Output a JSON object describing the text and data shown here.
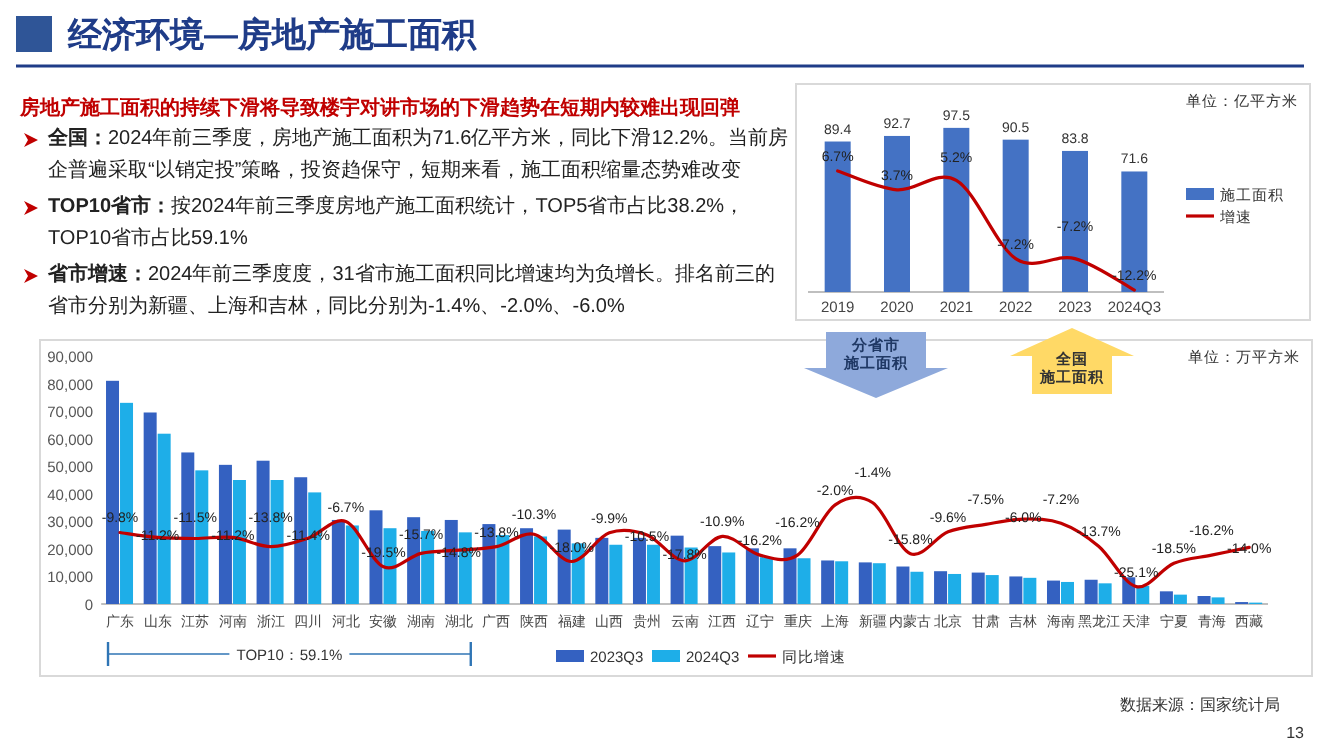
{
  "chart_data": [
    {
      "type": "other",
      "title": "经济环境—房地产施工面积",
      "subtitle": "房地产施工面积的持续下滑将导致楼宇对讲市场的下滑趋势在短期内较难出现回弹",
      "annotations": [
        "全国：2024年前三季度，房地产施工面积为71.6亿平方米，同比下滑12.2%。当前房企普遍采取“以销定投”策略，投资趋保守，短期来看，施工面积缩量态势难改变",
        "TOP10省市：按2024年前三季度房地产施工面积统计，TOP5省市占比38.2%，TOP10省市占比59.1%",
        "省市增速：2024年前三季度度，31省市施工面积同比增速均为负增长。排名前三的省市分别为新疆、上海和吉林，同比分别为-1.4%、-2.0%、-6.0%",
        "数据来源：国家统计局",
        "13"
      ]
    },
    {
      "type": "bar",
      "categories": [
        "2019",
        "2020",
        "2021",
        "2022",
        "2023",
        "2024Q3"
      ],
      "ylim": [
        0,
        120
      ],
      "tick_labels": "x",
      "legend": "right",
      "annotations": [
        "单位：亿平方米"
      ],
      "series": [
        {
          "name": "施工面积",
          "type": "bar",
          "color": "#4472c4",
          "values": [
            89.4,
            92.7,
            97.5,
            90.5,
            83.8,
            71.6
          ],
          "value_labels": [
            "89.4",
            "92.7",
            "97.5",
            "90.5",
            "83.8",
            "71.6"
          ]
        },
        {
          "name": "增速",
          "type": "line",
          "axis": "y2",
          "color": "#c00000",
          "values": [
            6.7,
            3.7,
            5.2,
            -7.2,
            -7.2,
            -12.2
          ],
          "value_labels": [
            "6.7%",
            "3.7%",
            "5.2%",
            "-7.2%",
            "-7.2%",
            "-12.2%"
          ]
        }
      ]
    },
    {
      "type": "bar",
      "categories": [
        "广东",
        "山东",
        "江苏",
        "河南",
        "浙江",
        "四川",
        "河北",
        "安徽",
        "湖南",
        "湖北",
        "广西",
        "陕西",
        "福建",
        "山西",
        "贵州",
        "云南",
        "江西",
        "辽宁",
        "重庆",
        "上海",
        "新疆",
        "内蒙古",
        "北京",
        "甘肃",
        "吉林",
        "海南",
        "黑龙江",
        "天津",
        "宁夏",
        "青海",
        "西藏"
      ],
      "ylim": [
        0,
        90000
      ],
      "yticks": [
        0,
        {
          "value": 10000,
          "label": "10,000"
        },
        {
          "value": 20000,
          "label": "20,000"
        },
        {
          "value": 30000,
          "label": "30,000"
        },
        {
          "value": 40000,
          "label": "40,000"
        },
        {
          "value": 50000,
          "label": "50,000"
        },
        {
          "value": 60000,
          "label": "60,000"
        },
        {
          "value": 70000,
          "label": "70,000"
        },
        {
          "value": 80000,
          "label": "80,000"
        },
        {
          "value": 90000,
          "label": "90,000"
        }
      ],
      "tick_labels": "xy",
      "legend": "bottom",
      "annotations": [
        "单位：万平方米",
        "TOP10：59.1%",
        "分省市施工面积",
        "全国施工面积"
      ],
      "series": [
        {
          "name": "2023Q3",
          "type": "bar",
          "color": "#3461c1",
          "values": [
            81000,
            69500,
            55000,
            50500,
            52000,
            46000,
            30500,
            34000,
            31500,
            30500,
            29000,
            27500,
            27000,
            24000,
            24000,
            24800,
            21000,
            20200,
            20200,
            15800,
            15100,
            13600,
            11900,
            11400,
            10000,
            8500,
            8800,
            9700,
            4600,
            2900,
            700
          ]
        },
        {
          "name": "2024Q3",
          "type": "bar",
          "color": "#1eaee8",
          "values": [
            73000,
            61800,
            48500,
            45000,
            45000,
            40500,
            28500,
            27500,
            26500,
            26000,
            25000,
            24500,
            22000,
            21500,
            21500,
            20500,
            18700,
            17000,
            16600,
            15500,
            14800,
            11700,
            10900,
            10500,
            9500,
            8000,
            7500,
            6600,
            3400,
            2400,
            500
          ]
        },
        {
          "name": "同比增速",
          "type": "line",
          "axis": "y2",
          "color": "#c00000",
          "values": [
            -9.8,
            -11.2,
            -11.5,
            -11.2,
            -13.8,
            -11.4,
            -6.7,
            -19.5,
            -15.7,
            -14.8,
            -13.8,
            -10.3,
            -18.0,
            -9.9,
            -10.5,
            -17.8,
            -10.9,
            -16.2,
            -16.2,
            -2.0,
            -1.4,
            -15.8,
            -9.6,
            -7.5,
            -6.0,
            -7.2,
            -13.7,
            -25.1,
            -18.5,
            -16.2,
            -14.0
          ],
          "value_labels": [
            "-9.8%",
            "-11.2%",
            "-11.5%",
            "-11.2%",
            "-13.8%",
            "-11.4%",
            "-6.7%",
            "-19.5%",
            "-15.7%",
            "-14.8%",
            "-13.8%",
            "-10.3%",
            "-18.0%",
            "-9.9%",
            "-10.5%",
            "-17.8%",
            "-10.9%",
            "-16.2%",
            "-16.2%",
            "-2.0%",
            "-1.4%",
            "-15.8%",
            "-9.6%",
            "-7.5%",
            "-6.0%",
            "-7.2%",
            "-13.7%",
            "-25.1%",
            "-18.5%",
            "-16.2%",
            "-14.0%"
          ]
        }
      ]
    }
  ]
}
